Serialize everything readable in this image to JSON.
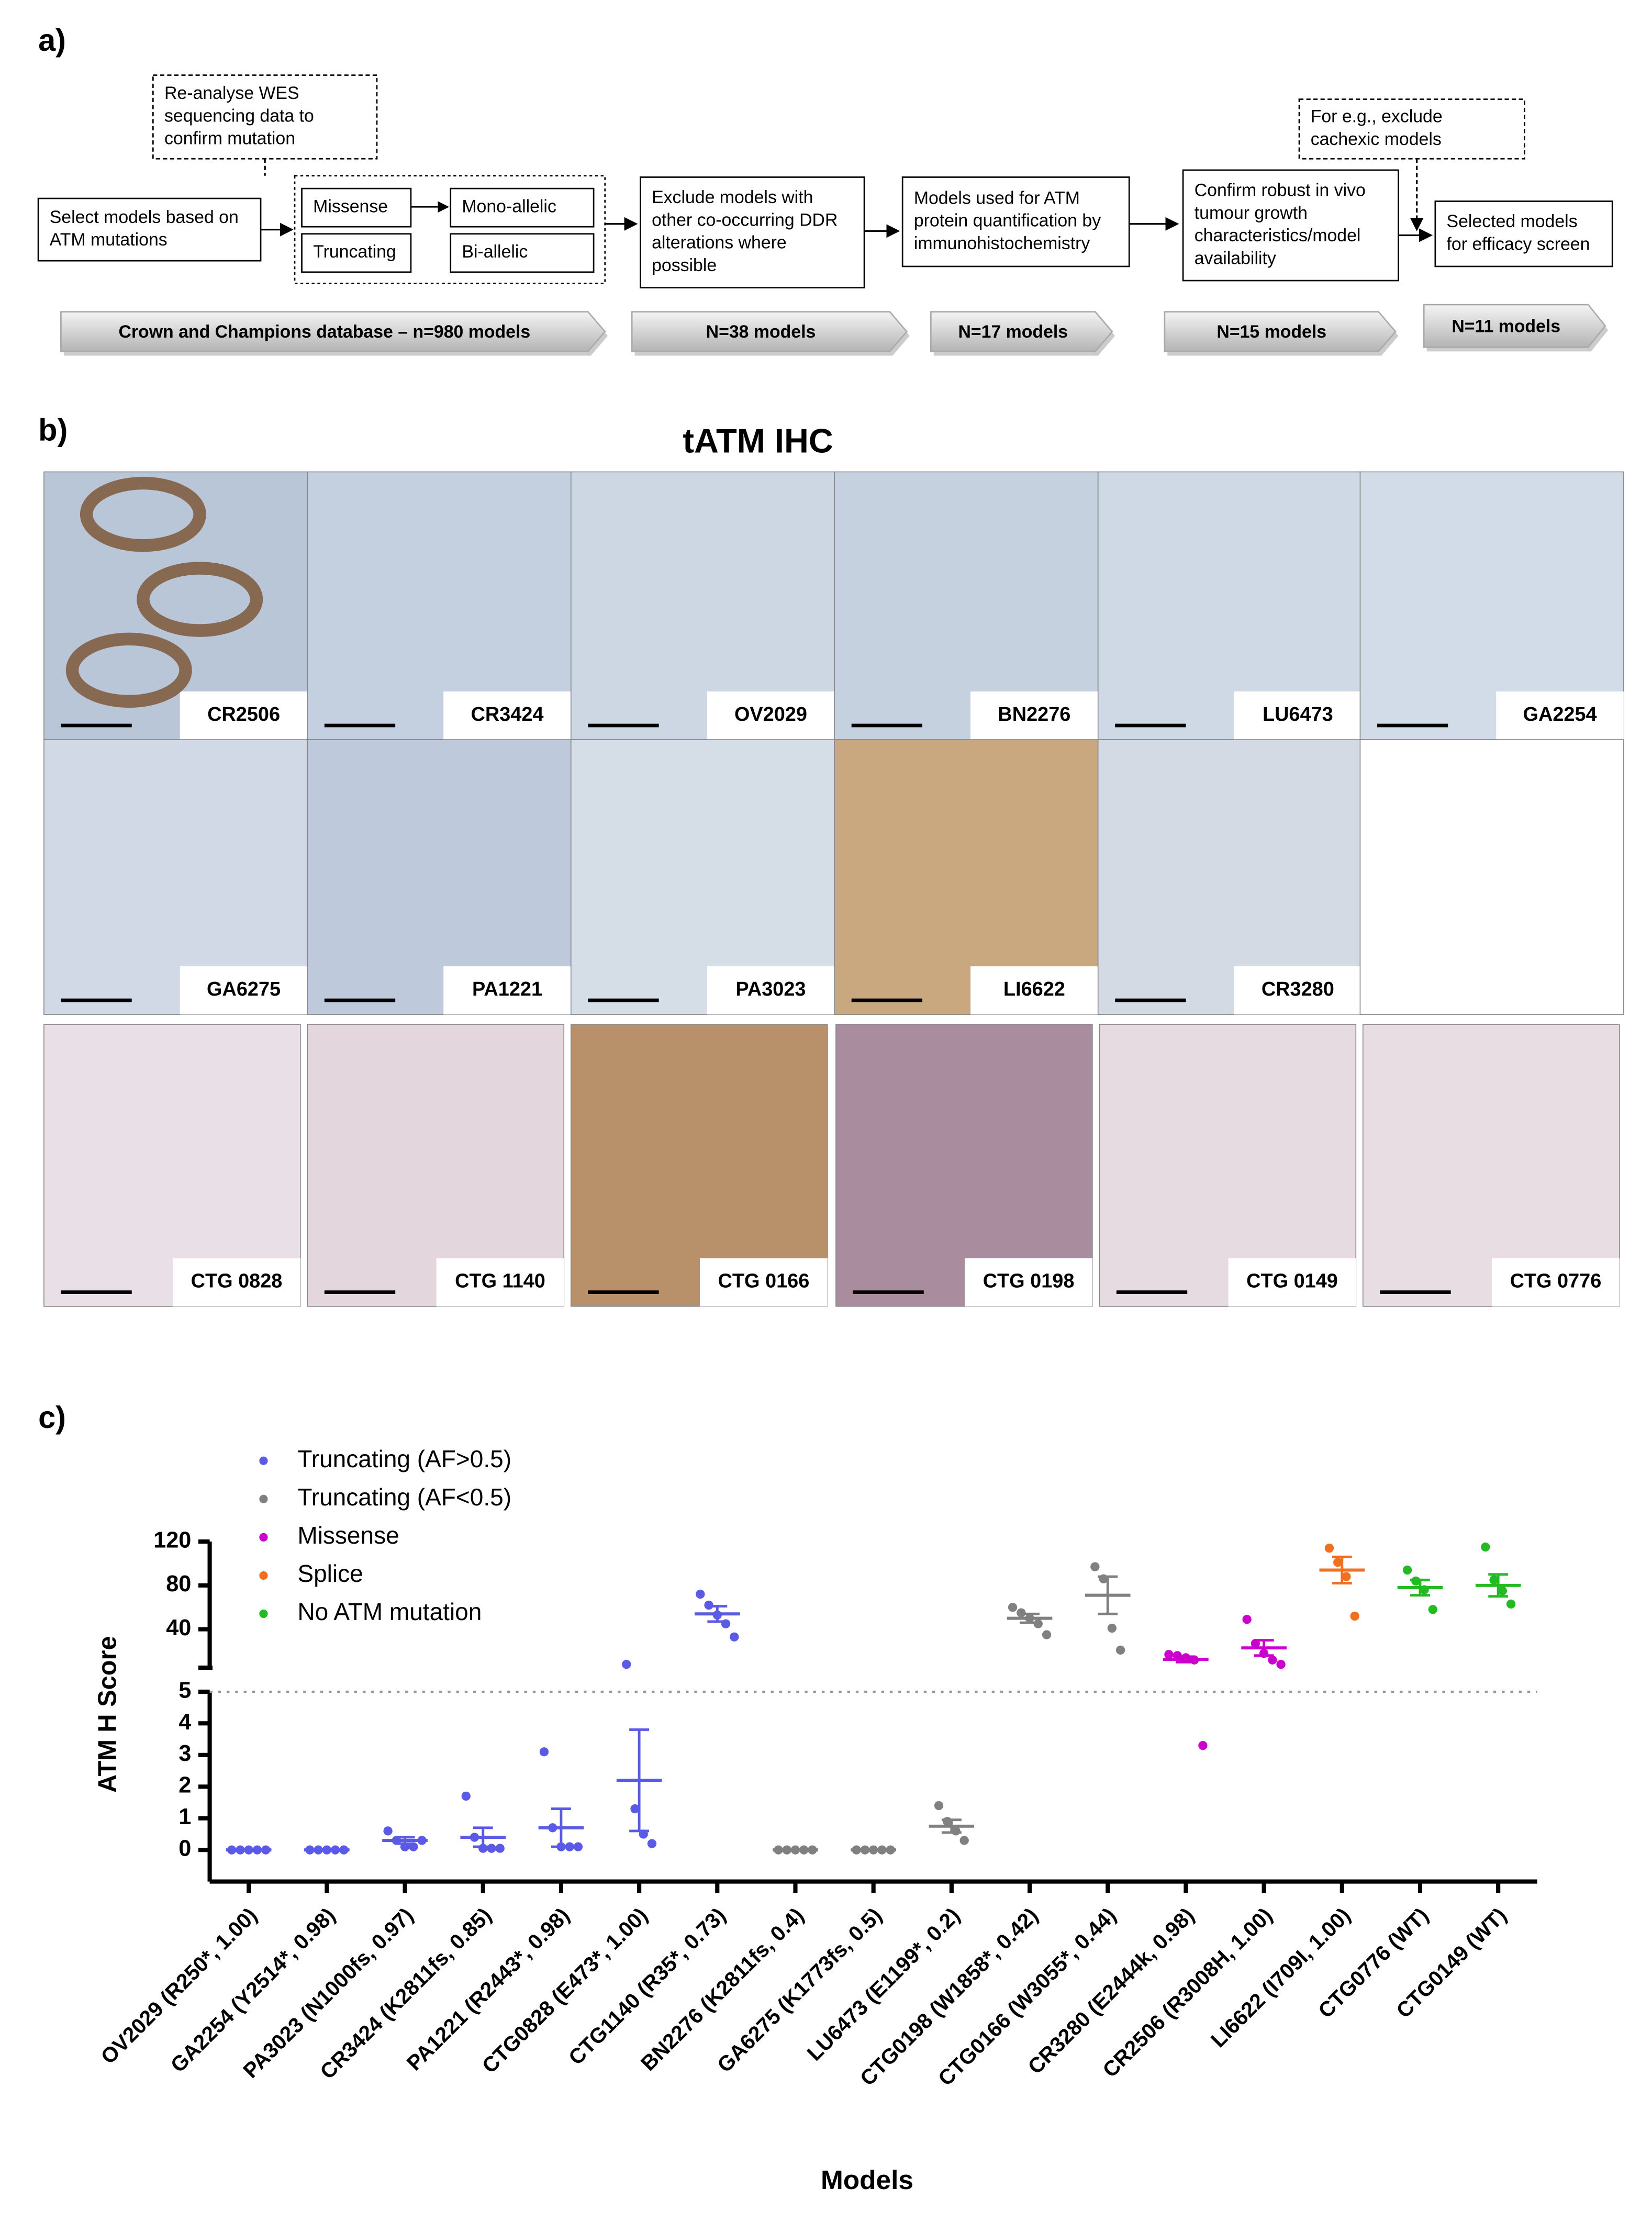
{
  "panel_a": {
    "label": "a)",
    "steps": [
      {
        "lines": [
          "Re-analyse WES",
          "sequencing data to",
          "confirm mutation"
        ]
      },
      {
        "lines": [
          "Select models based on",
          "ATM mutations"
        ]
      },
      {
        "lines": [
          "Missense"
        ]
      },
      {
        "lines": [
          "Truncating"
        ]
      },
      {
        "lines": [
          "Mono-allelic"
        ]
      },
      {
        "lines": [
          "Bi-allelic"
        ]
      },
      {
        "lines": [
          "Exclude models with",
          "other co-occurring DDR",
          "alterations where",
          "possible"
        ]
      },
      {
        "lines": [
          "Models used for ATM",
          "protein quantification by",
          "immunohistochemistry"
        ]
      },
      {
        "lines": [
          "Confirm robust in vivo",
          "tumour growth",
          "characteristics/model",
          "availability"
        ]
      },
      {
        "lines": [
          "For e.g., exclude",
          "cachexic models"
        ]
      },
      {
        "lines": [
          "Selected models",
          "for efficacy screen"
        ]
      }
    ],
    "filters": [
      "Crown and Champions database – n=980 models",
      "N=38 models",
      "N=17 models",
      "N=15 models",
      "N=11 models"
    ]
  },
  "panel_b": {
    "label": "b)",
    "title": "tATM IHC",
    "tiles": [
      "CR2506",
      "CR3424",
      "OV2029",
      "BN2276",
      "LU6473",
      "GA2254",
      "GA6275",
      "PA1221",
      "PA3023",
      "LI6622",
      "CR3280"
    ],
    "ctg_tiles": [
      "CTG 0828",
      "CTG 1140",
      "CTG 0166",
      "CTG 0198",
      "CTG 0149",
      "CTG 0776"
    ]
  },
  "panel_c": {
    "label": "c)"
  },
  "chart_data": {
    "type": "dotplot",
    "ylabel": "ATM H Score",
    "xlabel": "Models",
    "categories": [
      "OV2029 (R250*, 1.00)",
      "GA2254 (Y2514*, 0.98)",
      "PA3023 (N1000fs, 0.97)",
      "CR3424 (K2811fs, 0.85)",
      "PA1221 (R2443*, 0.98)",
      "CTG0828 (E473*, 1.00)",
      "CTG1140 (R35*, 0.73)",
      "BN2276 (K2811fs, 0.4)",
      "GA6275 (K1773fs, 0.5)",
      "LU6473 (E1199*, 0.2)",
      "CTG0198 (W1858*, 0.42)",
      "CTG0166 (W3055*, 0.44)",
      "CR3280 (E2444k, 0.98)",
      "CR2506 (R3008H, 1.00)",
      "LI6622 (I709I, 1.00)",
      "CTG0776 (WT)",
      "CTG0149 (WT)"
    ],
    "series": [
      {
        "name": "Truncating (AF>0.5)",
        "color": "#5a5ae6",
        "values": [
          [
            0,
            0,
            0,
            0,
            0
          ],
          [
            0,
            0,
            0,
            0,
            0
          ],
          [
            0.6,
            0.3,
            0.1,
            0.1,
            0.3
          ],
          [
            1.7,
            0.4,
            0.05,
            0.05,
            0.05
          ],
          [
            3.1,
            0.7,
            0.1,
            0.1,
            0.1
          ],
          [
            8,
            1.3,
            0.5,
            0.2
          ],
          [
            72,
            62,
            53,
            45,
            33
          ],
          null,
          null,
          null,
          null,
          null,
          null,
          null,
          null,
          null,
          null
        ],
        "means": [
          0,
          0,
          0.3,
          0.4,
          0.7,
          2.2,
          54,
          null,
          null,
          null,
          null,
          null,
          null,
          null,
          null,
          null,
          null
        ],
        "sems": [
          0,
          0,
          0.1,
          0.3,
          0.6,
          1.6,
          7,
          null,
          null,
          null,
          null,
          null,
          null,
          null,
          null,
          null,
          null
        ]
      },
      {
        "name": "Truncating (AF<0.5)",
        "color": "#808080",
        "values": [
          null,
          null,
          null,
          null,
          null,
          null,
          null,
          [
            0,
            0,
            0,
            0,
            0
          ],
          [
            0,
            0,
            0,
            0,
            0
          ],
          [
            1.4,
            0.9,
            0.6,
            0.3
          ],
          [
            60,
            55,
            50,
            45,
            35
          ],
          [
            97,
            86,
            41,
            21
          ],
          null,
          null,
          null,
          null,
          null
        ],
        "means": [
          null,
          null,
          null,
          null,
          null,
          null,
          null,
          0,
          0,
          0.75,
          50,
          71,
          null,
          null,
          null,
          null,
          null
        ],
        "sems": [
          null,
          null,
          null,
          null,
          null,
          null,
          null,
          0,
          0,
          0.2,
          4,
          17,
          null,
          null,
          null,
          null,
          null
        ]
      },
      {
        "name": "Missense",
        "color": "#cc00cc",
        "values": [
          null,
          null,
          null,
          null,
          null,
          null,
          null,
          null,
          null,
          null,
          null,
          null,
          [
            17,
            16,
            14,
            12,
            3.3
          ],
          [
            49,
            27,
            18,
            12,
            8
          ],
          null,
          null,
          null
        ],
        "means": [
          null,
          null,
          null,
          null,
          null,
          null,
          null,
          null,
          null,
          null,
          null,
          null,
          12.5,
          23,
          null,
          null,
          null
        ],
        "sems": [
          null,
          null,
          null,
          null,
          null,
          null,
          null,
          null,
          null,
          null,
          null,
          null,
          2.5,
          7,
          null,
          null,
          null
        ]
      },
      {
        "name": "Splice",
        "color": "#f07020",
        "values": [
          null,
          null,
          null,
          null,
          null,
          null,
          null,
          null,
          null,
          null,
          null,
          null,
          null,
          null,
          [
            114,
            101,
            88,
            52
          ],
          null,
          null
        ],
        "means": [
          null,
          null,
          null,
          null,
          null,
          null,
          null,
          null,
          null,
          null,
          null,
          null,
          null,
          null,
          94,
          null,
          null
        ],
        "sems": [
          null,
          null,
          null,
          null,
          null,
          null,
          null,
          null,
          null,
          null,
          null,
          null,
          null,
          null,
          12,
          null,
          null
        ]
      },
      {
        "name": "No ATM mutation",
        "color": "#22bb22",
        "values": [
          null,
          null,
          null,
          null,
          null,
          null,
          null,
          null,
          null,
          null,
          null,
          null,
          null,
          null,
          null,
          [
            94,
            84,
            76,
            58
          ],
          [
            115,
            85,
            75,
            63
          ]
        ],
        "means": [
          null,
          null,
          null,
          null,
          null,
          null,
          null,
          null,
          null,
          null,
          null,
          null,
          null,
          null,
          null,
          78,
          80
        ],
        "sems": [
          null,
          null,
          null,
          null,
          null,
          null,
          null,
          null,
          null,
          null,
          null,
          null,
          null,
          null,
          null,
          7,
          10
        ]
      }
    ],
    "ylim": [
      -1,
      5
    ],
    "yticks": [
      0,
      1,
      2,
      3,
      4,
      5
    ],
    "upper_ylim": [
      5,
      120
    ],
    "upper_yticks": [
      40,
      80,
      120
    ]
  }
}
